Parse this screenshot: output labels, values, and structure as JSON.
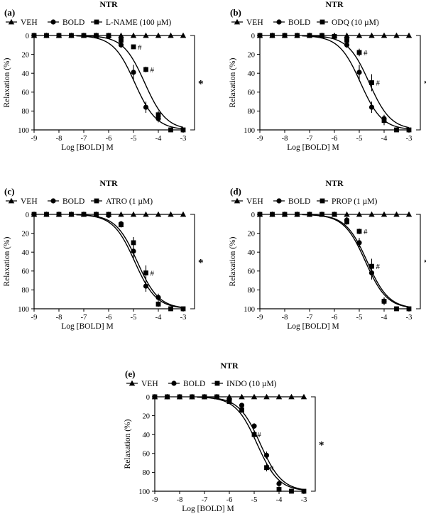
{
  "figure": {
    "background": "#ffffff",
    "ink": "#000000"
  },
  "chart_data": [
    {
      "panel": "(a)",
      "title": "NTR",
      "type": "line",
      "xlabel": "Log [BOLD] M",
      "ylabel": "Relaxation (%)",
      "xlim": [
        -9,
        -3
      ],
      "ylim": [
        0,
        100
      ],
      "y_inverted": true,
      "xticks": [
        "-9",
        "-8",
        "-7",
        "-6",
        "-5",
        "-4",
        "-3"
      ],
      "yticks": [
        "0",
        "20",
        "40",
        "60",
        "80",
        "100"
      ],
      "legend": [
        {
          "label": "VEH",
          "marker": "triangle"
        },
        {
          "label": "BOLD",
          "marker": "circle"
        },
        {
          "label": "L-NAME (100 µM)",
          "marker": "square"
        }
      ],
      "significance": "*",
      "series": [
        {
          "marker": "triangle",
          "x": [
            -9,
            -8.5,
            -8,
            -7.5,
            -7,
            -6.5,
            -6,
            -5.5,
            -5,
            -4.5,
            -4,
            -3.5,
            -3
          ],
          "y": [
            0,
            0,
            0,
            0,
            0,
            0,
            0,
            0,
            0,
            0,
            0,
            0,
            0
          ]
        },
        {
          "marker": "circle",
          "x": [
            -9,
            -8.5,
            -8,
            -7.5,
            -7,
            -6.5,
            -6,
            -5.5,
            -5,
            -4.5,
            -4
          ],
          "y": [
            0,
            0,
            0,
            0,
            0,
            0,
            1,
            10,
            39,
            76,
            88
          ],
          "err": [
            0,
            0,
            0,
            0,
            0,
            0,
            1,
            3,
            8,
            6,
            4
          ],
          "fit": {
            "logEC50": -4.95,
            "hill": 1.0
          }
        },
        {
          "marker": "square",
          "x": [
            -9,
            -8.5,
            -8,
            -7.5,
            -7,
            -6.5,
            -6,
            -5.5,
            -5,
            -4.5,
            -4,
            -3.5,
            -3
          ],
          "y": [
            0,
            0,
            0,
            0,
            0,
            0,
            0,
            5,
            12,
            36,
            84,
            100,
            100
          ],
          "err": [
            0,
            0,
            0,
            0,
            0,
            0,
            1,
            3,
            2,
            3,
            4,
            0,
            0
          ],
          "fit": {
            "logEC50": -4.55,
            "hill": 1.0
          }
        }
      ],
      "annotations": [
        {
          "text": "#",
          "x": -5,
          "y": 12
        },
        {
          "text": "#",
          "x": -4.5,
          "y": 36
        }
      ]
    },
    {
      "panel": "(b)",
      "title": "NTR",
      "type": "line",
      "xlabel": "Log [BOLD] M",
      "ylabel": "Relaxation (%)",
      "xlim": [
        -9,
        -3
      ],
      "ylim": [
        0,
        100
      ],
      "y_inverted": true,
      "xticks": [
        "-9",
        "-8",
        "-7",
        "-6",
        "-5",
        "-4",
        "-3"
      ],
      "yticks": [
        "0",
        "20",
        "40",
        "60",
        "80",
        "100"
      ],
      "legend": [
        {
          "label": "VEH",
          "marker": "triangle"
        },
        {
          "label": "BOLD",
          "marker": "circle"
        },
        {
          "label": "ODQ (10 µM)",
          "marker": "square"
        }
      ],
      "significance": "*",
      "series": [
        {
          "marker": "triangle",
          "x": [
            -9,
            -8.5,
            -8,
            -7.5,
            -7,
            -6.5,
            -6,
            -5.5,
            -5,
            -4.5,
            -4,
            -3.5,
            -3
          ],
          "y": [
            0,
            0,
            0,
            0,
            0,
            0,
            0,
            0,
            0,
            0,
            0,
            0,
            0
          ]
        },
        {
          "marker": "circle",
          "x": [
            -9,
            -8.5,
            -8,
            -7.5,
            -7,
            -6.5,
            -6,
            -5.5,
            -5,
            -4.5,
            -4
          ],
          "y": [
            0,
            0,
            0,
            0,
            0,
            0,
            1,
            10,
            39,
            76,
            88
          ],
          "err": [
            0,
            0,
            0,
            0,
            0,
            0,
            1,
            3,
            8,
            6,
            4
          ],
          "fit": {
            "logEC50": -4.95,
            "hill": 1.0
          }
        },
        {
          "marker": "square",
          "x": [
            -9,
            -8.5,
            -8,
            -7.5,
            -7,
            -6.5,
            -6,
            -5.5,
            -5,
            -4.5,
            -4,
            -3.5,
            -3
          ],
          "y": [
            0,
            0,
            0,
            0,
            0,
            0,
            1,
            5,
            18,
            50,
            90,
            100,
            100
          ],
          "err": [
            0,
            0,
            0,
            0,
            0,
            0,
            1,
            3,
            4,
            9,
            5,
            0,
            0
          ],
          "fit": {
            "logEC50": -4.6,
            "hill": 1.0
          }
        }
      ],
      "annotations": [
        {
          "text": "#",
          "x": -5,
          "y": 18
        },
        {
          "text": "#",
          "x": -4.5,
          "y": 50
        }
      ]
    },
    {
      "panel": "(c)",
      "title": "NTR",
      "type": "line",
      "xlabel": "Log [BOLD] M",
      "ylabel": "Relaxation (%)",
      "xlim": [
        -9,
        -3
      ],
      "ylim": [
        0,
        100
      ],
      "y_inverted": true,
      "xticks": [
        "-9",
        "-8",
        "-7",
        "-6",
        "-5",
        "-4",
        "-3"
      ],
      "yticks": [
        "0",
        "20",
        "40",
        "60",
        "80",
        "100"
      ],
      "legend": [
        {
          "label": "VEH",
          "marker": "triangle"
        },
        {
          "label": "BOLD",
          "marker": "circle"
        },
        {
          "label": "ATRO (1 µM)",
          "marker": "square"
        }
      ],
      "significance": "*",
      "series": [
        {
          "marker": "triangle",
          "x": [
            -9,
            -8.5,
            -8,
            -7.5,
            -7,
            -6.5,
            -6,
            -5.5,
            -5,
            -4.5,
            -4,
            -3.5,
            -3
          ],
          "y": [
            0,
            0,
            0,
            0,
            0,
            0,
            0,
            0,
            0,
            0,
            0,
            0,
            0
          ]
        },
        {
          "marker": "circle",
          "x": [
            -9,
            -8.5,
            -8,
            -7.5,
            -7,
            -6.5,
            -6,
            -5.5,
            -5,
            -4.5,
            -4
          ],
          "y": [
            0,
            0,
            0,
            0,
            0,
            0,
            1,
            10,
            39,
            76,
            88
          ],
          "err": [
            0,
            0,
            0,
            0,
            0,
            0,
            1,
            3,
            8,
            6,
            4
          ],
          "fit": {
            "logEC50": -4.95,
            "hill": 1.0
          }
        },
        {
          "marker": "square",
          "x": [
            -9,
            -8.5,
            -8,
            -7.5,
            -7,
            -6.5,
            -6,
            -5.5,
            -5,
            -4.5,
            -4,
            -3.5,
            -3
          ],
          "y": [
            0,
            0,
            0,
            0,
            0,
            0,
            0,
            11,
            30,
            62,
            95,
            100,
            100
          ],
          "err": [
            0,
            0,
            0,
            0,
            0,
            0,
            1,
            3,
            6,
            8,
            3,
            0,
            0
          ],
          "fit": {
            "logEC50": -4.85,
            "hill": 1.0
          }
        }
      ],
      "annotations": [
        {
          "text": "#",
          "x": -4.5,
          "y": 62
        }
      ]
    },
    {
      "panel": "(d)",
      "title": "NTR",
      "type": "line",
      "xlabel": "Log [BOLD] M",
      "ylabel": "Relaxation (%)",
      "xlim": [
        -9,
        -3
      ],
      "ylim": [
        0,
        100
      ],
      "y_inverted": true,
      "xticks": [
        "-9",
        "-8",
        "-7",
        "-6",
        "-5",
        "-4",
        "-3"
      ],
      "yticks": [
        "0",
        "20",
        "40",
        "60",
        "80",
        "100"
      ],
      "legend": [
        {
          "label": "VEH",
          "marker": "triangle"
        },
        {
          "label": "BOLD",
          "marker": "circle"
        },
        {
          "label": "PROP (1 µM)",
          "marker": "square"
        }
      ],
      "significance": "*",
      "series": [
        {
          "marker": "triangle",
          "x": [
            -9,
            -8.5,
            -8,
            -7.5,
            -7,
            -6.5,
            -6,
            -5.5,
            -5,
            -4.5,
            -4,
            -3.5,
            -3
          ],
          "y": [
            0,
            0,
            0,
            0,
            0,
            0,
            0,
            0,
            0,
            0,
            0,
            0,
            0
          ]
        },
        {
          "marker": "circle",
          "x": [
            -9,
            -8.5,
            -8,
            -7.5,
            -7,
            -6.5,
            -6,
            -5.5,
            -5,
            -4.5,
            -4
          ],
          "y": [
            0,
            0,
            0,
            0,
            0,
            0,
            0,
            6,
            30,
            62,
            92
          ],
          "err": [
            0,
            0,
            0,
            0,
            0,
            0,
            1,
            3,
            5,
            7,
            4
          ],
          "fit": {
            "logEC50": -4.75,
            "hill": 1.0
          }
        },
        {
          "marker": "square",
          "x": [
            -9,
            -8.5,
            -8,
            -7.5,
            -7,
            -6.5,
            -6,
            -5.5,
            -5,
            -4.5,
            -4,
            -3.5,
            -3
          ],
          "y": [
            0,
            0,
            0,
            0,
            0,
            0,
            0,
            8,
            18,
            55,
            92,
            100,
            100
          ],
          "err": [
            0,
            0,
            0,
            0,
            0,
            0,
            1,
            3,
            3,
            8,
            4,
            0,
            0
          ],
          "fit": {
            "logEC50": -4.68,
            "hill": 1.0
          }
        }
      ],
      "annotations": [
        {
          "text": "#",
          "x": -5,
          "y": 18
        },
        {
          "text": "#",
          "x": -4.5,
          "y": 55
        }
      ]
    },
    {
      "panel": "(e)",
      "title": "NTR",
      "type": "line",
      "xlabel": "Log [BOLD] M",
      "ylabel": "Relaxation (%)",
      "xlim": [
        -9,
        -3
      ],
      "ylim": [
        0,
        100
      ],
      "y_inverted": true,
      "xticks": [
        "-9",
        "-8",
        "-7",
        "-6",
        "-5",
        "-4",
        "-3"
      ],
      "yticks": [
        "0",
        "20",
        "40",
        "60",
        "80",
        "100"
      ],
      "legend": [
        {
          "label": "VEH",
          "marker": "triangle"
        },
        {
          "label": "BOLD",
          "marker": "circle"
        },
        {
          "label": "INDO (10 µM)",
          "marker": "square"
        }
      ],
      "significance": "*",
      "series": [
        {
          "marker": "triangle",
          "x": [
            -9,
            -8.5,
            -8,
            -7.5,
            -7,
            -6.5,
            -6,
            -5.5,
            -5,
            -4.5,
            -4,
            -3.5,
            -3
          ],
          "y": [
            0,
            0,
            0,
            0,
            0,
            0,
            0,
            0,
            0,
            0,
            0,
            0,
            0
          ]
        },
        {
          "marker": "circle",
          "x": [
            -9,
            -8.5,
            -8,
            -7.5,
            -7,
            -6.5,
            -6,
            -5.5,
            -5,
            -4.5,
            -4
          ],
          "y": [
            0,
            0,
            0,
            0,
            0,
            0,
            3,
            9,
            31,
            62,
            92
          ],
          "err": [
            0,
            0,
            0,
            0,
            0,
            0,
            1,
            2,
            3,
            4,
            3
          ],
          "fit": {
            "logEC50": -4.75,
            "hill": 1.0
          }
        },
        {
          "marker": "square",
          "x": [
            -9,
            -8.5,
            -8,
            -7.5,
            -7,
            -6.5,
            -6,
            -5.5,
            -5,
            -4.5,
            -4,
            -3.5,
            -3
          ],
          "y": [
            0,
            0,
            0,
            0,
            0,
            0,
            5,
            14,
            40,
            75,
            98,
            100,
            100
          ],
          "err": [
            0,
            0,
            0,
            0,
            0,
            0,
            1,
            3,
            4,
            4,
            3,
            0,
            0
          ],
          "fit": {
            "logEC50": -4.88,
            "hill": 1.0
          }
        }
      ],
      "annotations": [
        {
          "text": "#",
          "x": -5.05,
          "y": 40
        },
        {
          "text": "#",
          "x": -4.55,
          "y": 75
        }
      ]
    }
  ]
}
